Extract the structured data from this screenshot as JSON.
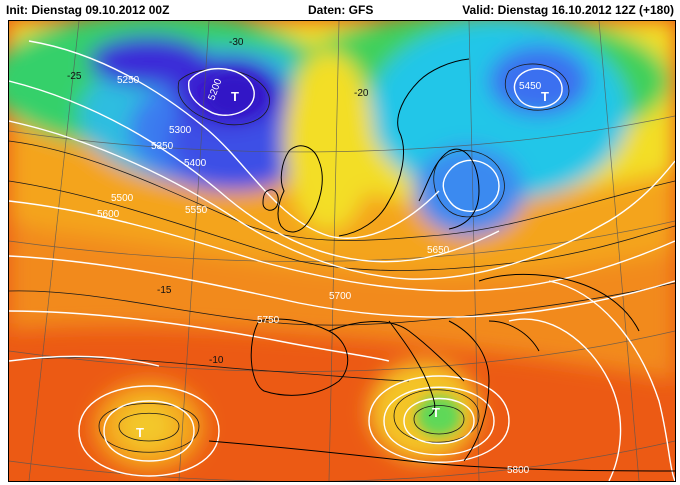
{
  "header": {
    "init": "Init: Dienstag 09.10.2012 00Z",
    "source": "Daten: GFS",
    "valid": "Valid: Dienstag 16.10.2012 12Z (+180)"
  },
  "map": {
    "geopotential_labels": [
      "5250",
      "5200",
      "5300",
      "5350",
      "5400",
      "5450",
      "5500",
      "5550",
      "5600",
      "5650",
      "5700",
      "5750",
      "5800"
    ],
    "temperature_labels": [
      "-30",
      "-25",
      "-20",
      "-15",
      "-10"
    ],
    "pressure_markers": [
      "T",
      "T",
      "T",
      "T"
    ],
    "colors": {
      "cold_core": "#3b1fd6",
      "blue": "#3a6ef0",
      "cyan": "#22c6e8",
      "green": "#3fd25a",
      "yellow": "#f2e22a",
      "orange": "#f39a1c",
      "red": "#ec4a12",
      "geopotential_contour": "#ffffff",
      "temperature_contour": "#1a1a1a"
    }
  }
}
